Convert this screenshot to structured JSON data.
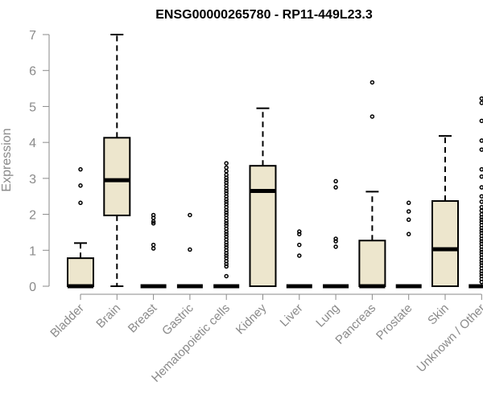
{
  "chart_data": {
    "type": "boxplot",
    "title": "ENSG00000265780 - RP11-449L23.3",
    "xlabel": "",
    "ylabel": "Expression",
    "ylim": [
      0,
      7
    ],
    "yticks": [
      0,
      1,
      2,
      3,
      4,
      5,
      6,
      7
    ],
    "box_fill": "#ede6cd",
    "categories": [
      "Bladder",
      "Brain",
      "Breast",
      "Gastric",
      "Hematopoietic cells",
      "Kidney",
      "Liver",
      "Lung",
      "Pancreas",
      "Prostate",
      "Skin",
      "Unknown / Other"
    ],
    "boxes": [
      {
        "name": "Bladder",
        "min": 0,
        "q1": 0,
        "median": 0,
        "q3": 0.78,
        "max": 1.2,
        "outliers": [
          2.32,
          2.8,
          3.25
        ]
      },
      {
        "name": "Brain",
        "min": 0,
        "q1": 1.97,
        "median": 2.95,
        "q3": 4.13,
        "max": 7.0,
        "outliers": []
      },
      {
        "name": "Breast",
        "min": 0,
        "q1": 0,
        "median": 0,
        "q3": 0,
        "max": 0,
        "outliers": [
          1.05,
          1.15,
          1.75,
          1.8,
          1.9,
          1.98
        ]
      },
      {
        "name": "Gastric",
        "min": 0,
        "q1": 0,
        "median": 0,
        "q3": 0,
        "max": 0,
        "outliers": [
          1.02,
          1.98
        ]
      },
      {
        "name": "Hematopoietic cells",
        "min": 0,
        "q1": 0,
        "median": 0,
        "q3": 0,
        "max": 0,
        "outliers": [
          0.28,
          0.55,
          0.62,
          0.7,
          0.78,
          0.85,
          0.92,
          1.0,
          1.08,
          1.15,
          1.22,
          1.3,
          1.38,
          1.45,
          1.52,
          1.6,
          1.68,
          1.75,
          1.82,
          1.9,
          1.98,
          2.05,
          2.12,
          2.2,
          2.28,
          2.35,
          2.42,
          2.5,
          2.58,
          2.65,
          2.72,
          2.8,
          2.88,
          2.95,
          3.02,
          3.1,
          3.2,
          3.3,
          3.42
        ]
      },
      {
        "name": "Kidney",
        "min": 0,
        "q1": 0,
        "median": 2.65,
        "q3": 3.35,
        "max": 4.95,
        "outliers": []
      },
      {
        "name": "Liver",
        "min": 0,
        "q1": 0,
        "median": 0,
        "q3": 0,
        "max": 0,
        "outliers": [
          0.85,
          1.15,
          1.45,
          1.52
        ]
      },
      {
        "name": "Lung",
        "min": 0,
        "q1": 0,
        "median": 0,
        "q3": 0,
        "max": 0,
        "outliers": [
          1.1,
          1.25,
          1.32,
          2.75,
          2.92
        ]
      },
      {
        "name": "Pancreas",
        "min": 0,
        "q1": 0,
        "median": 0,
        "q3": 1.27,
        "max": 2.63,
        "outliers": [
          4.72,
          5.67
        ]
      },
      {
        "name": "Prostate",
        "min": 0,
        "q1": 0,
        "median": 0,
        "q3": 0,
        "max": 0,
        "outliers": [
          1.45,
          1.85,
          2.08,
          2.32
        ]
      },
      {
        "name": "Skin",
        "min": 0,
        "q1": 0,
        "median": 1.03,
        "q3": 2.37,
        "max": 4.18,
        "outliers": []
      },
      {
        "name": "Unknown / Other",
        "min": 0,
        "q1": 0,
        "median": 0,
        "q3": 0,
        "max": 0,
        "outliers": [
          0.12,
          0.2,
          0.28,
          0.35,
          0.42,
          0.5,
          0.58,
          0.65,
          0.72,
          0.8,
          0.88,
          0.95,
          1.02,
          1.1,
          1.18,
          1.25,
          1.32,
          1.4,
          1.48,
          1.55,
          1.62,
          1.7,
          1.78,
          1.85,
          1.92,
          2.0,
          2.1,
          2.2,
          2.35,
          2.5,
          2.75,
          3.05,
          3.25,
          3.8,
          4.05,
          4.6,
          5.1,
          5.22
        ]
      }
    ]
  }
}
